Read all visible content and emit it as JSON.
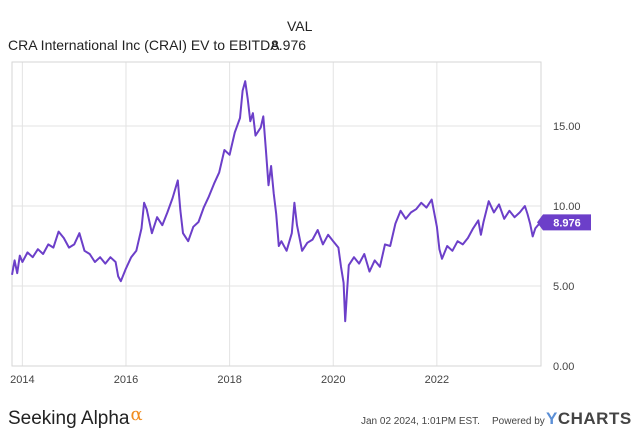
{
  "header": {
    "column_label": "VAL",
    "series_label": "CRA International Inc (CRAI) EV to EBITDA",
    "series_value": "8.976"
  },
  "chart_data": {
    "type": "line",
    "series": [
      {
        "name": "CRA International Inc (CRAI) EV to EBITDA",
        "color": "#6c3fc9",
        "last_value_label": "8.976",
        "points": [
          [
            2013.8,
            5.7
          ],
          [
            2013.85,
            6.6
          ],
          [
            2013.9,
            5.8
          ],
          [
            2013.95,
            6.9
          ],
          [
            2014.0,
            6.5
          ],
          [
            2014.1,
            7.1
          ],
          [
            2014.2,
            6.8
          ],
          [
            2014.3,
            7.3
          ],
          [
            2014.4,
            7.0
          ],
          [
            2014.5,
            7.6
          ],
          [
            2014.6,
            7.4
          ],
          [
            2014.7,
            8.4
          ],
          [
            2014.8,
            8.0
          ],
          [
            2014.9,
            7.4
          ],
          [
            2015.0,
            7.6
          ],
          [
            2015.1,
            8.3
          ],
          [
            2015.2,
            7.2
          ],
          [
            2015.3,
            7.0
          ],
          [
            2015.4,
            6.5
          ],
          [
            2015.5,
            6.8
          ],
          [
            2015.6,
            6.4
          ],
          [
            2015.7,
            6.8
          ],
          [
            2015.8,
            6.5
          ],
          [
            2015.85,
            5.6
          ],
          [
            2015.9,
            5.3
          ],
          [
            2016.0,
            6.1
          ],
          [
            2016.1,
            6.8
          ],
          [
            2016.2,
            7.2
          ],
          [
            2016.3,
            8.6
          ],
          [
            2016.35,
            10.2
          ],
          [
            2016.4,
            9.8
          ],
          [
            2016.5,
            8.3
          ],
          [
            2016.6,
            9.3
          ],
          [
            2016.7,
            8.8
          ],
          [
            2016.8,
            9.6
          ],
          [
            2016.9,
            10.5
          ],
          [
            2017.0,
            11.6
          ],
          [
            2017.05,
            9.7
          ],
          [
            2017.1,
            8.3
          ],
          [
            2017.2,
            7.8
          ],
          [
            2017.3,
            8.7
          ],
          [
            2017.4,
            9.0
          ],
          [
            2017.5,
            9.9
          ],
          [
            2017.6,
            10.6
          ],
          [
            2017.7,
            11.4
          ],
          [
            2017.8,
            12.1
          ],
          [
            2017.9,
            13.5
          ],
          [
            2018.0,
            13.2
          ],
          [
            2018.1,
            14.6
          ],
          [
            2018.2,
            15.5
          ],
          [
            2018.25,
            17.2
          ],
          [
            2018.3,
            17.8
          ],
          [
            2018.35,
            16.7
          ],
          [
            2018.4,
            15.3
          ],
          [
            2018.45,
            15.8
          ],
          [
            2018.5,
            14.4
          ],
          [
            2018.6,
            14.9
          ],
          [
            2018.65,
            15.6
          ],
          [
            2018.7,
            13.5
          ],
          [
            2018.75,
            11.3
          ],
          [
            2018.8,
            12.5
          ],
          [
            2018.85,
            10.8
          ],
          [
            2018.9,
            9.5
          ],
          [
            2018.95,
            7.5
          ],
          [
            2019.0,
            7.8
          ],
          [
            2019.1,
            7.2
          ],
          [
            2019.2,
            8.3
          ],
          [
            2019.25,
            10.2
          ],
          [
            2019.3,
            8.8
          ],
          [
            2019.4,
            7.2
          ],
          [
            2019.5,
            7.7
          ],
          [
            2019.6,
            7.9
          ],
          [
            2019.7,
            8.5
          ],
          [
            2019.8,
            7.6
          ],
          [
            2019.9,
            8.2
          ],
          [
            2020.0,
            7.8
          ],
          [
            2020.1,
            7.4
          ],
          [
            2020.15,
            6.2
          ],
          [
            2020.2,
            5.2
          ],
          [
            2020.23,
            2.8
          ],
          [
            2020.27,
            4.8
          ],
          [
            2020.3,
            6.3
          ],
          [
            2020.4,
            6.8
          ],
          [
            2020.5,
            6.4
          ],
          [
            2020.6,
            7.0
          ],
          [
            2020.7,
            5.9
          ],
          [
            2020.8,
            6.6
          ],
          [
            2020.9,
            6.2
          ],
          [
            2021.0,
            7.6
          ],
          [
            2021.1,
            7.5
          ],
          [
            2021.2,
            8.9
          ],
          [
            2021.3,
            9.7
          ],
          [
            2021.4,
            9.2
          ],
          [
            2021.5,
            9.6
          ],
          [
            2021.6,
            9.8
          ],
          [
            2021.7,
            10.2
          ],
          [
            2021.8,
            9.9
          ],
          [
            2021.9,
            10.4
          ],
          [
            2022.0,
            8.7
          ],
          [
            2022.05,
            7.3
          ],
          [
            2022.1,
            6.7
          ],
          [
            2022.2,
            7.5
          ],
          [
            2022.3,
            7.2
          ],
          [
            2022.4,
            7.8
          ],
          [
            2022.5,
            7.6
          ],
          [
            2022.6,
            8.0
          ],
          [
            2022.7,
            8.6
          ],
          [
            2022.8,
            9.1
          ],
          [
            2022.85,
            8.2
          ],
          [
            2022.9,
            9.0
          ],
          [
            2023.0,
            10.3
          ],
          [
            2023.1,
            9.6
          ],
          [
            2023.2,
            10.1
          ],
          [
            2023.3,
            9.2
          ],
          [
            2023.4,
            9.7
          ],
          [
            2023.5,
            9.3
          ],
          [
            2023.6,
            9.6
          ],
          [
            2023.7,
            10.0
          ],
          [
            2023.75,
            9.5
          ],
          [
            2023.8,
            8.9
          ],
          [
            2023.85,
            8.1
          ],
          [
            2023.9,
            8.6
          ],
          [
            2023.95,
            8.8
          ],
          [
            2024.01,
            8.976
          ]
        ]
      }
    ],
    "xlim": [
      2013.8,
      2024.01
    ],
    "ylim": [
      0,
      19
    ],
    "x_ticks": [
      2014,
      2016,
      2018,
      2020,
      2022
    ],
    "x_tick_labels": [
      "2014",
      "2016",
      "2018",
      "2020",
      "2022"
    ],
    "y_ticks": [
      0,
      5,
      10,
      15
    ],
    "y_tick_labels": [
      "0.00",
      "5.00",
      "10.00",
      "15.00"
    ],
    "grid": true,
    "y_axis_position": "right"
  },
  "footer": {
    "brand_left": "Seeking Alpha",
    "brand_left_symbol": "α",
    "timestamp": "Jan 02 2024, 1:01PM EST.",
    "powered_by": "Powered by",
    "brand_right_y": "Y",
    "brand_right_rest": "CHARTS",
    "accent_color": "#f08c1e",
    "logo_color": "#5b8fd6"
  }
}
